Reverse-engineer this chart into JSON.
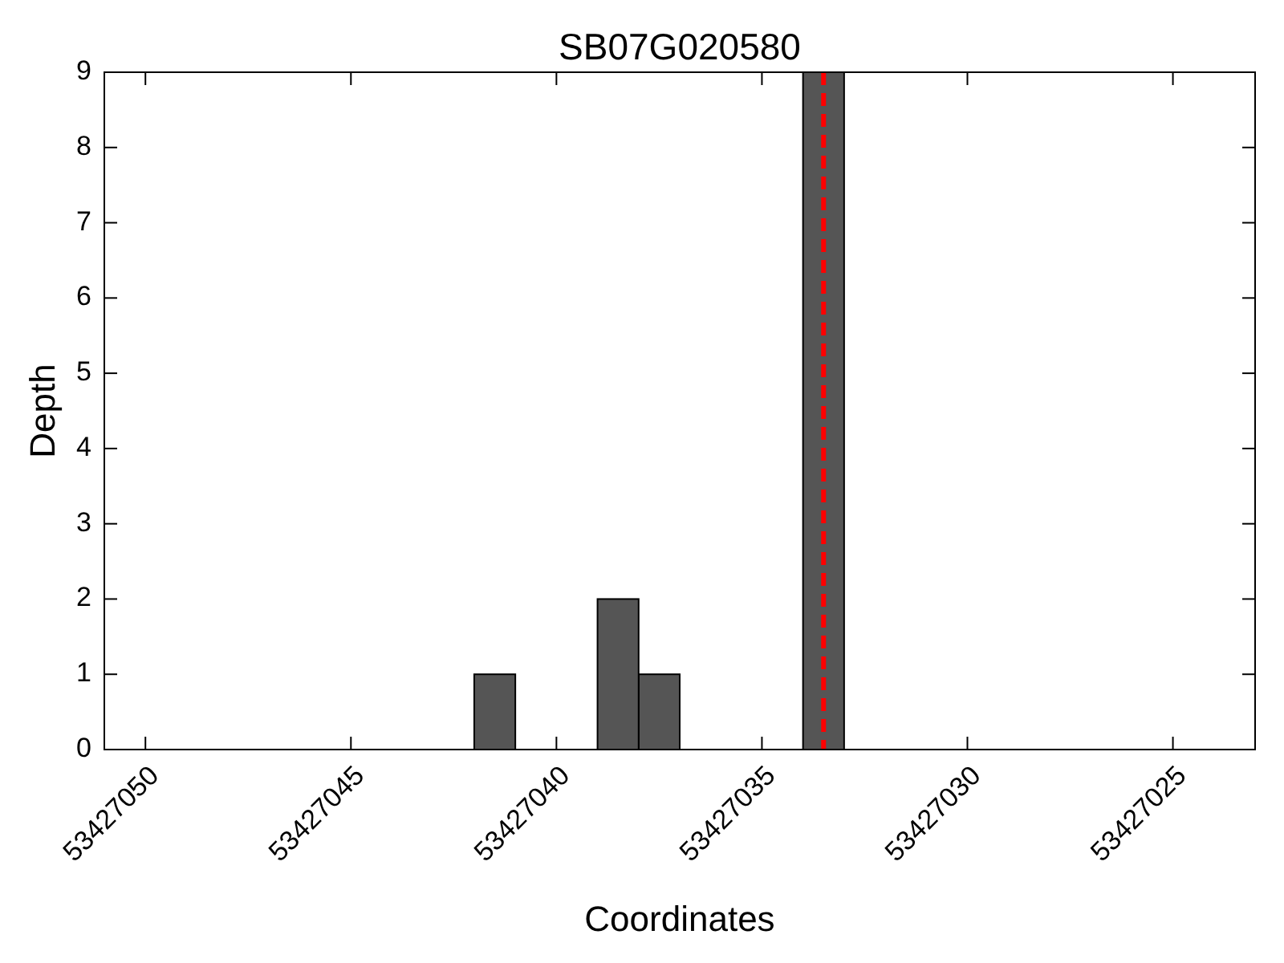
{
  "chart_data": {
    "type": "histogram",
    "title": "SB07G020580",
    "xlabel": "Coordinates",
    "ylabel": "Depth",
    "bins": [
      53427033,
      53427034,
      53427035,
      53427036,
      53427037,
      53427038,
      53427039,
      53427040,
      53427041,
      53427042
    ],
    "values": [
      9,
      0,
      0,
      0,
      1,
      2,
      0,
      0,
      1
    ],
    "color": "#555555",
    "xlim": [
      53427051,
      53427023
    ],
    "xticks": [
      53427050,
      53427045,
      53427040,
      53427035,
      53427030,
      53427025
    ],
    "ylim": [
      0,
      9
    ],
    "yticks": [
      0,
      1,
      2,
      3,
      4,
      5,
      6,
      7,
      8,
      9
    ],
    "ref_lines": [
      {
        "axis": "x",
        "value": 53427033.5,
        "color": "#ff0000",
        "line_style": "dashed"
      }
    ]
  }
}
